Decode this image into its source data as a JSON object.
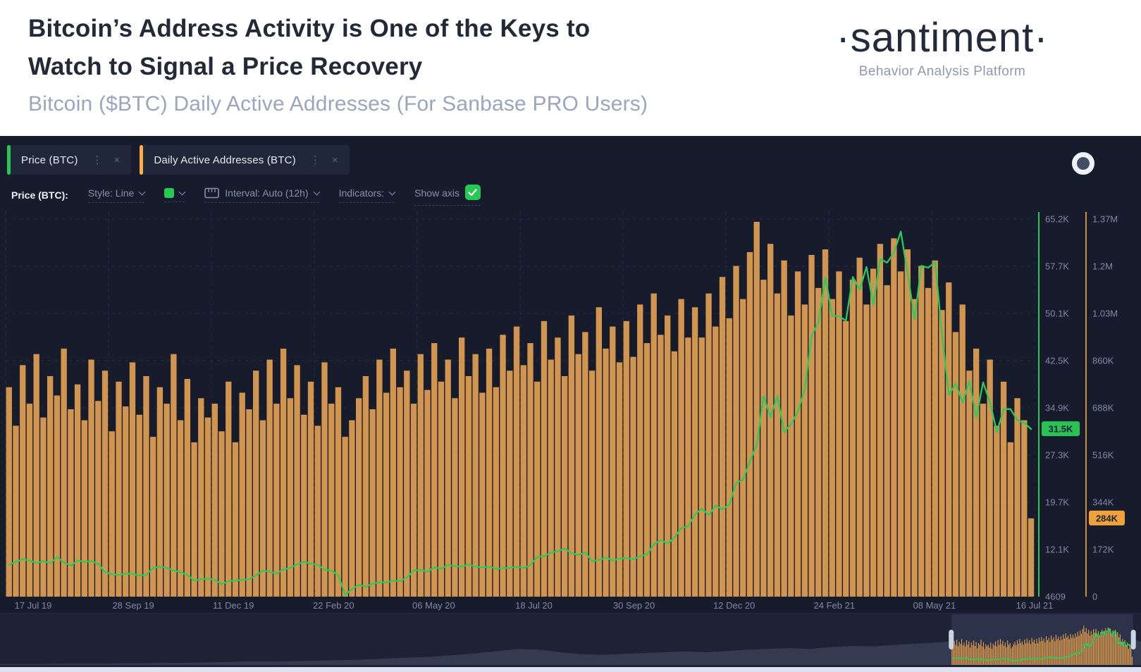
{
  "header": {
    "title_line1": "Bitcoin’s Address Activity is One of the Keys to",
    "title_line2": "Watch to Signal a Price Recovery",
    "subtitle": "Bitcoin ($BTC) Daily Active Addresses (For Sanbase PRO Users)",
    "brand_name": "·santiment·",
    "brand_tagline": "Behavior Analysis Platform"
  },
  "icons": {
    "kebab": "⋮",
    "close": "×"
  },
  "tabs": [
    {
      "label": "Price (BTC)",
      "accent": "#26c953"
    },
    {
      "label": "Daily Active Addresses (BTC)",
      "accent": "#ffad4a"
    }
  ],
  "toolbar": {
    "metric_label": "Price (BTC):",
    "style_label": "Style: Line",
    "interval_label": "Interval: Auto (12h)",
    "indicators_label": "Indicators:",
    "show_axis_label": "Show axis"
  },
  "colors": {
    "panel_bg": "#171c2d",
    "grid": "#242b41",
    "axis_text": "#7e89a1",
    "green": "#26c953",
    "green_line": "#2bcb5b",
    "bar_orange": "#d2954f",
    "nav_orange": "#e8a14c",
    "orange_axis": "#d28c3e",
    "badge_green_bg": "#2bc155",
    "badge_green_text": "#0f2133",
    "badge_orange_bg": "#efa23b",
    "badge_orange_text": "#1d2230",
    "nav_bg": "#1d2334",
    "nav_silhouette": "#333a52",
    "nav_selection_bg": "#2b3249",
    "nav_handle": "#ccd4e2"
  },
  "chart_data": {
    "type": "mixed",
    "title": "Bitcoin ($BTC) Daily Active Addresses (For Sanbase PRO Users)",
    "x_tick_labels": [
      "17 Jul 19",
      "28 Sep 19",
      "11 Dec 19",
      "22 Feb 20",
      "06 May 20",
      "18 Jul 20",
      "30 Sep 20",
      "12 Dec 20",
      "24 Feb 21",
      "08 May 21",
      "16 Jul 21"
    ],
    "price_axis_ticks": [
      "65.2K",
      "57.7K",
      "50.1K",
      "42.5K",
      "34.9K",
      "27.3K",
      "19.7K",
      "12.1K",
      "4609"
    ],
    "daa_axis_ticks": [
      "1.37M",
      "1.2M",
      "1.03M",
      "860K",
      "688K",
      "516K",
      "344K",
      "172K",
      "0"
    ],
    "price_axis_range_usd": [
      4609,
      65200
    ],
    "daa_axis_range": [
      0,
      1370000
    ],
    "latest_price_label": "31.5K",
    "latest_price_value_k": 31.5,
    "latest_daa_label": "284K",
    "latest_daa_value_k": 284,
    "values_unit": "thousands",
    "series": [
      {
        "name": "Price (BTC)",
        "type": "line",
        "color": "#2bcb5b",
        "values_k": [
          9.7,
          10.2,
          10.6,
          10.4,
          10.0,
          10.3,
          10.0,
          10.9,
          10.1,
          9.6,
          10.4,
          10.2,
          10.3,
          9.9,
          8.5,
          8.2,
          8.1,
          8.3,
          8.3,
          8.0,
          8.1,
          9.2,
          9.4,
          9.2,
          8.8,
          8.5,
          8.1,
          7.2,
          7.4,
          7.5,
          7.3,
          6.6,
          7.1,
          7.2,
          7.3,
          7.4,
          8.0,
          8.8,
          8.6,
          8.3,
          9.0,
          9.2,
          9.8,
          10.2,
          9.9,
          9.7,
          8.9,
          8.8,
          8.0,
          4.9,
          5.8,
          6.5,
          6.2,
          6.7,
          6.9,
          6.9,
          7.2,
          7.1,
          7.7,
          8.8,
          8.9,
          8.6,
          9.3,
          9.1,
          9.7,
          9.5,
          9.4,
          9.8,
          9.4,
          9.3,
          9.4,
          9.1,
          9.2,
          9.2,
          9.4,
          9.2,
          9.7,
          11.0,
          11.1,
          11.7,
          11.9,
          12.3,
          11.6,
          11.3,
          11.7,
          10.3,
          10.5,
          10.9,
          10.4,
          10.7,
          10.8,
          10.6,
          11.1,
          11.4,
          13.0,
          13.7,
          13.1,
          14.1,
          15.6,
          15.9,
          17.8,
          18.7,
          17.7,
          19.2,
          18.6,
          19.4,
          22.8,
          23.4,
          26.3,
          29.0,
          36.8,
          33.4,
          36.8,
          31.0,
          32.3,
          34.3,
          37.9,
          46.5,
          48.6,
          55.9,
          49.7,
          49.6,
          48.9,
          55.9,
          53.9,
          57.5,
          51.4,
          58.8,
          58.2,
          59.8,
          63.2,
          56.5,
          49.1,
          57.7,
          57.4,
          58.3,
          46.8,
          37.0,
          38.8,
          35.7,
          39.2,
          33.4,
          39.0,
          35.8,
          31.0,
          34.7,
          34.7,
          32.9,
          32.5,
          31.5
        ]
      },
      {
        "name": "Daily Active Addresses (BTC)",
        "type": "bar",
        "color": "#d2954f",
        "values_k": [
          760,
          620,
          840,
          700,
          880,
          650,
          800,
          730,
          900,
          680,
          770,
          640,
          860,
          710,
          820,
          600,
          780,
          690,
          850,
          660,
          800,
          580,
          760,
          700,
          880,
          640,
          790,
          560,
          720,
          650,
          700,
          600,
          780,
          560,
          740,
          680,
          820,
          640,
          860,
          700,
          900,
          720,
          840,
          660,
          780,
          620,
          850,
          700,
          760,
          580,
          640,
          720,
          800,
          680,
          860,
          740,
          900,
          760,
          820,
          700,
          880,
          750,
          920,
          780,
          860,
          720,
          940,
          800,
          880,
          740,
          900,
          760,
          950,
          820,
          980,
          840,
          920,
          780,
          1000,
          860,
          940,
          800,
          1020,
          880,
          960,
          820,
          1050,
          900,
          980,
          850,
          1000,
          870,
          1060,
          920,
          1100,
          950,
          1020,
          890,
          1080,
          940,
          1050,
          940,
          1100,
          980,
          1160,
          1010,
          1200,
          1080,
          1250,
          1360,
          1150,
          1280,
          1100,
          1220,
          1020,
          1180,
          1060,
          1240,
          1120,
          1260,
          1080,
          1180,
          1000,
          1150,
          1230,
          1060,
          1190,
          1280,
          1130,
          1300,
          1180,
          1260,
          1080,
          1200,
          1120,
          1220,
          1040,
          1140,
          960,
          1060,
          820,
          900,
          700,
          860,
          620,
          780,
          560,
          720,
          640,
          284
        ]
      }
    ],
    "navigator": {
      "selection_start_frac": 0.834,
      "selection_end_frac": 0.993,
      "history_values": [
        0.02,
        0.02,
        0.02,
        0.03,
        0.03,
        0.03,
        0.04,
        0.04,
        0.05,
        0.05,
        0.06,
        0.07,
        0.08,
        0.08,
        0.09,
        0.1,
        0.11,
        0.12,
        0.14,
        0.16,
        0.18,
        0.2,
        0.24,
        0.28,
        0.33,
        0.38,
        0.36,
        0.3,
        0.26,
        0.24,
        0.26,
        0.28,
        0.3,
        0.32,
        0.3,
        0.33,
        0.36,
        0.38,
        0.4,
        0.38,
        0.42,
        0.45,
        0.44,
        0.47,
        0.5,
        0.53,
        0.56,
        0.6,
        0.66,
        0.74,
        0.85,
        0.95,
        0.88,
        0.8,
        0.72,
        0.55
      ]
    }
  }
}
